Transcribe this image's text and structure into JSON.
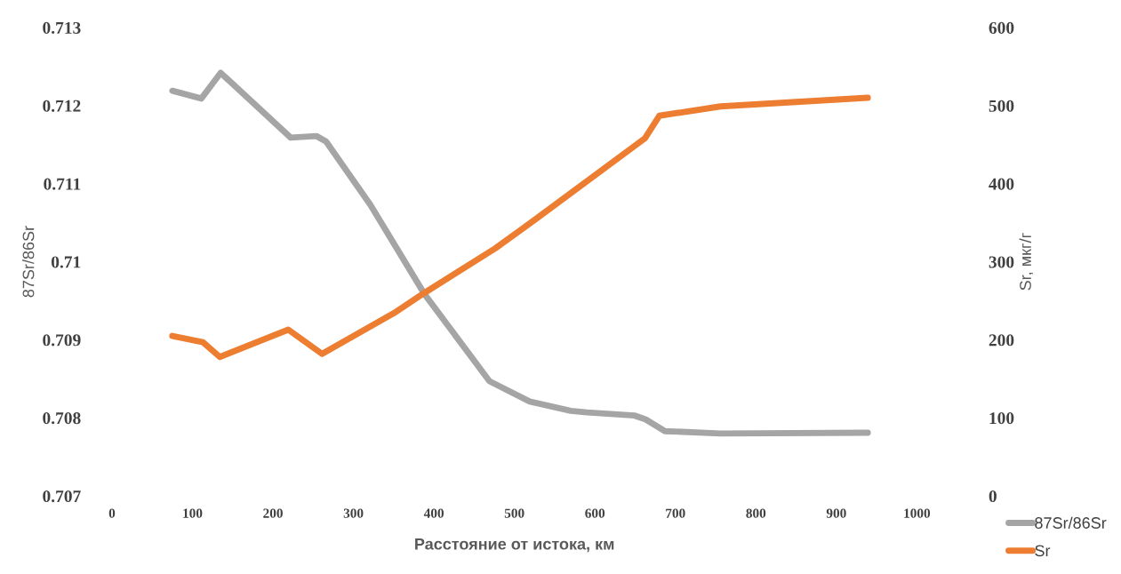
{
  "chart_data": {
    "type": "line",
    "xlabel": "Расстояние от истока, км",
    "ylabel": "87Sr/86Sr",
    "y2label": "Sr, мкг/г",
    "xlim": [
      0,
      1000
    ],
    "xticks": [
      0,
      100,
      200,
      300,
      400,
      500,
      600,
      700,
      800,
      900,
      1000
    ],
    "ylim": [
      0.707,
      0.713
    ],
    "yticks": [
      0.707,
      0.708,
      0.709,
      0.71,
      0.711,
      0.712,
      0.713
    ],
    "y2lim": [
      0,
      600
    ],
    "y2ticks": [
      0,
      100,
      200,
      300,
      400,
      500,
      600
    ],
    "grid": false,
    "legend": "bottom right",
    "marker": "none",
    "line_style": "solid",
    "series": [
      {
        "name": "87Sr/86Sr",
        "color": "#a5a5a5",
        "x": [
          75,
          111,
          135,
          222,
          254,
          266,
          321,
          388,
          469,
          519,
          570,
          590,
          649,
          663,
          687,
          756,
          939
        ],
        "values": [
          0.71219,
          0.71209,
          0.71242,
          0.71159,
          0.71161,
          0.71154,
          0.71073,
          0.70959,
          0.70847,
          0.70821,
          0.70809,
          0.70807,
          0.70803,
          0.70798,
          0.70783,
          0.7078,
          0.70781
        ]
      },
      {
        "name": "Sr",
        "color": "#ed7d31",
        "axis": "y2",
        "x": [
          75,
          113,
          134,
          219,
          261,
          350,
          388,
          476,
          523,
          662,
          680,
          756,
          939
        ],
        "values": [
          205,
          197,
          178,
          213,
          182,
          234,
          260,
          317,
          352,
          458,
          487,
          499,
          510
        ]
      }
    ]
  }
}
